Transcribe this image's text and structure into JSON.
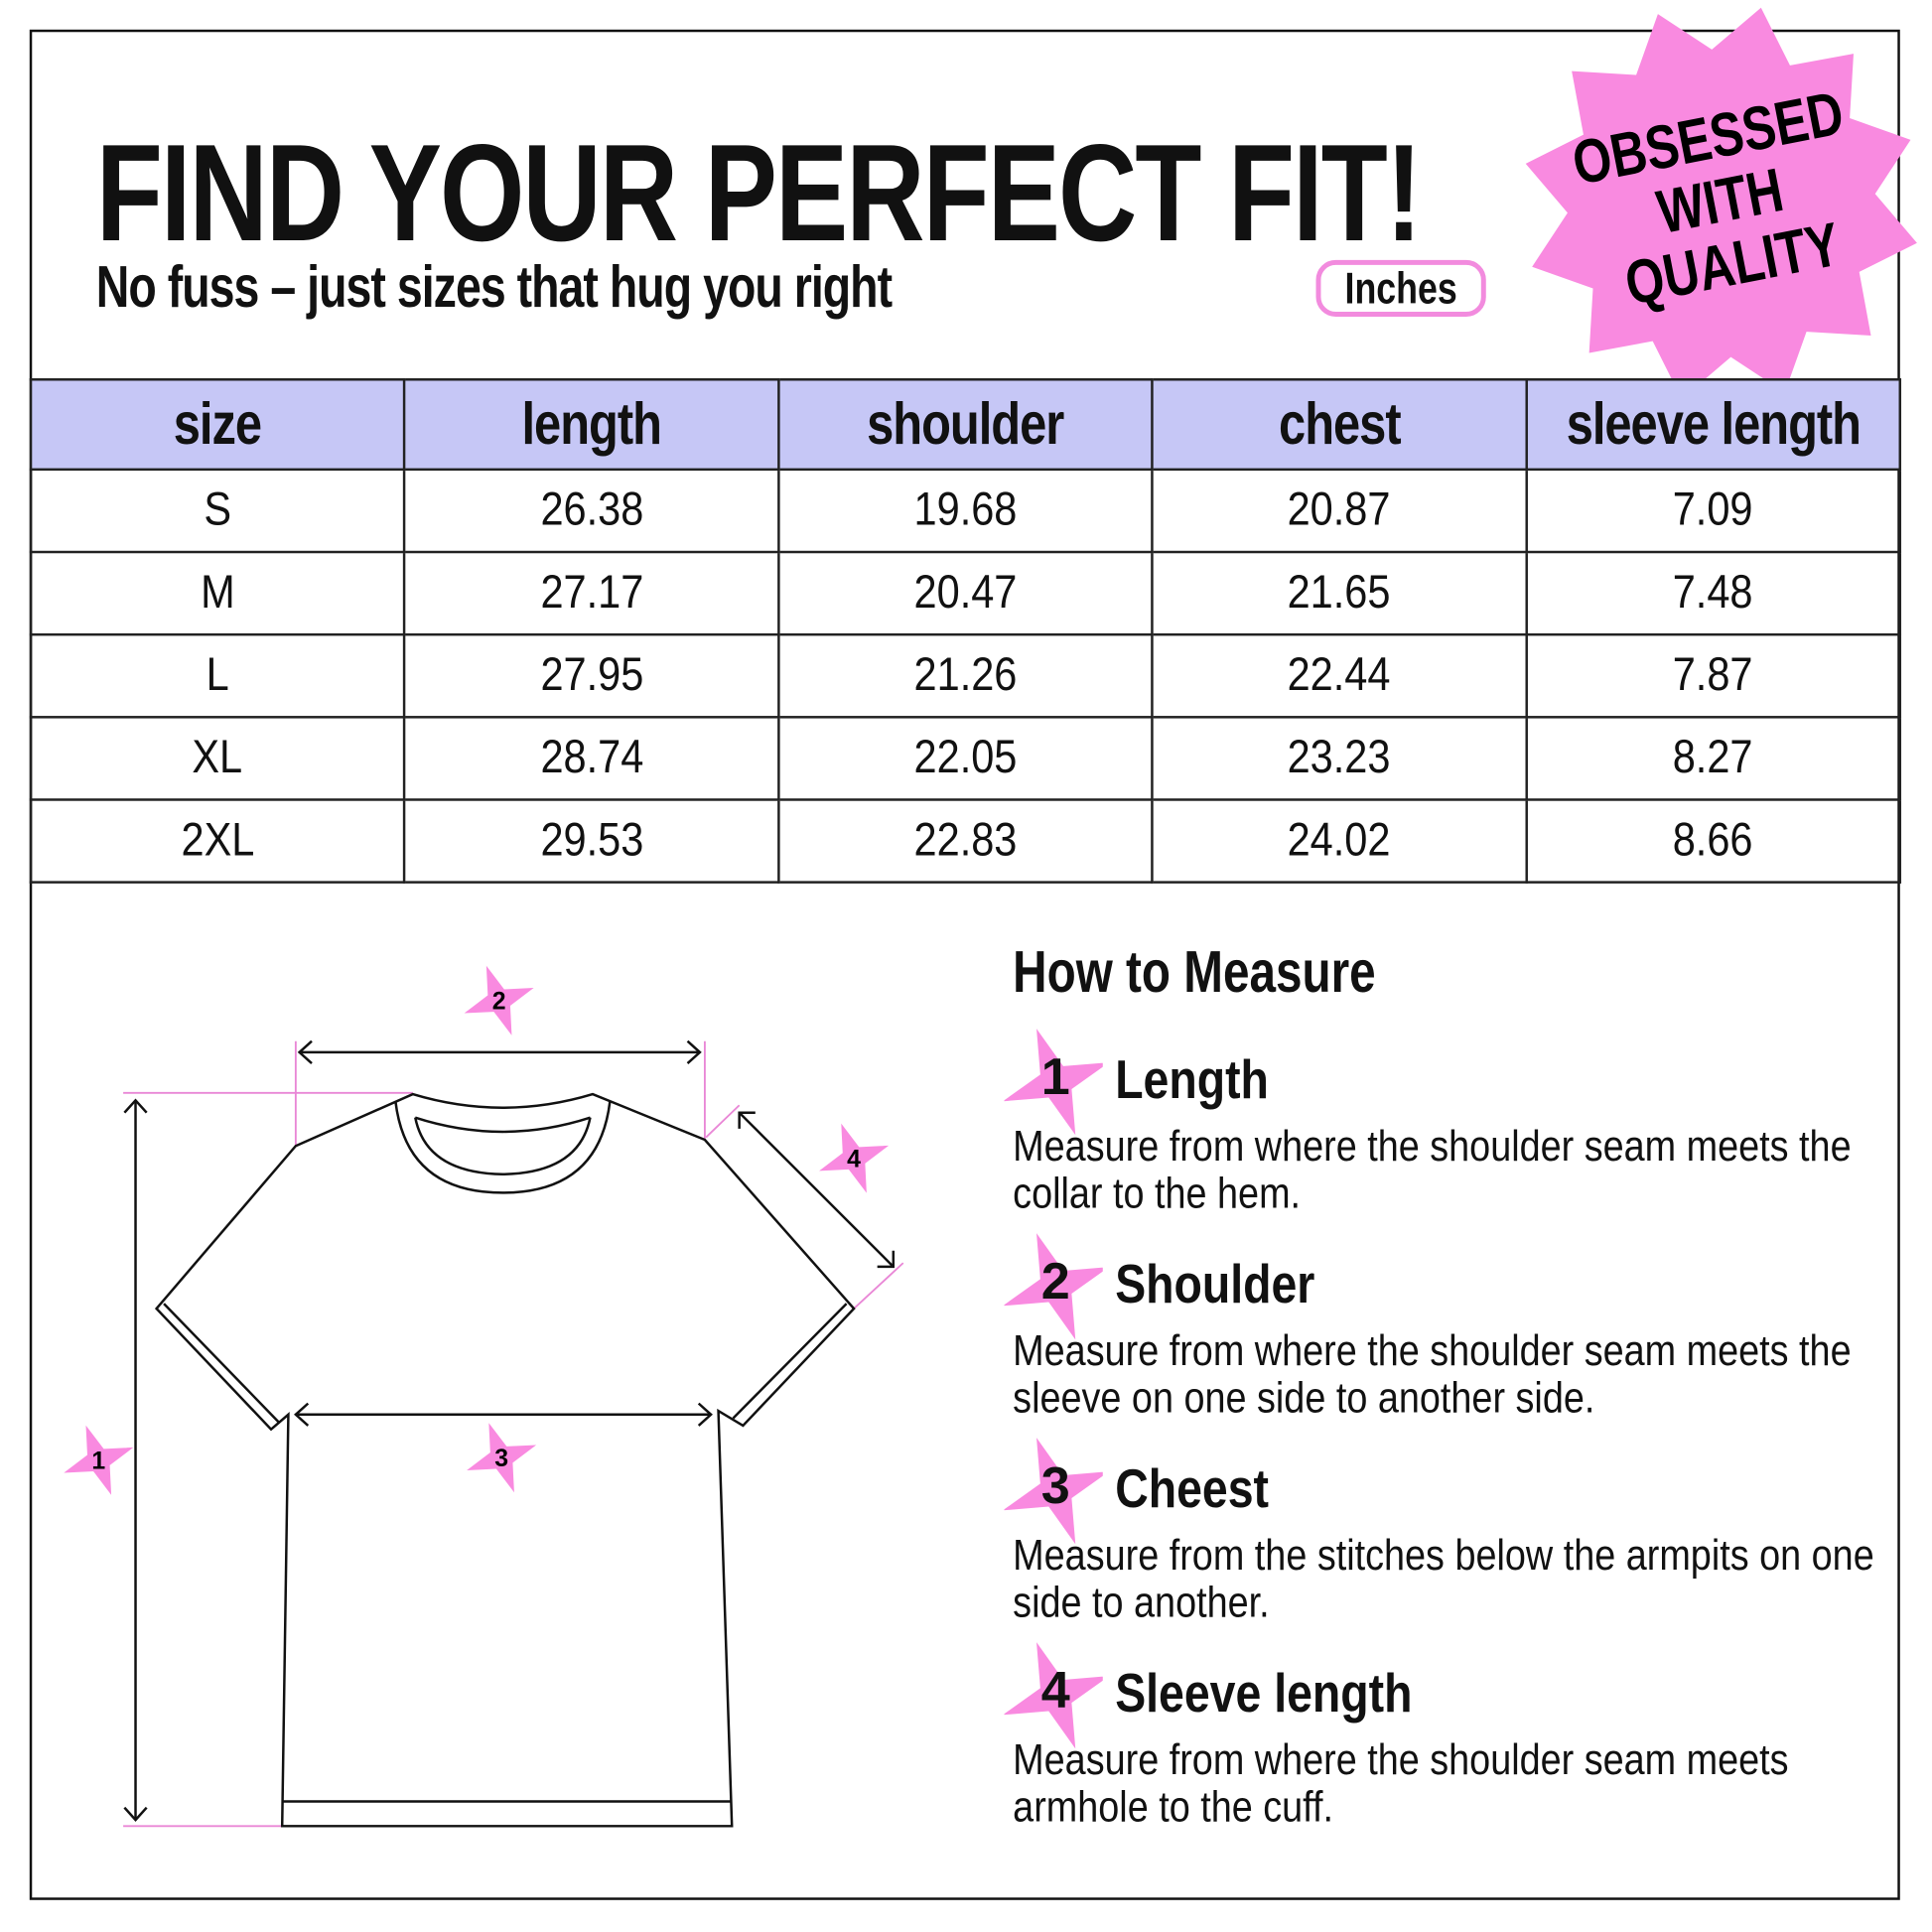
{
  "header": {
    "title": "FIND YOUR PERFECT FIT!",
    "subtitle": "No fuss – just sizes that hug you right",
    "unit_label": "Inches",
    "badge_lines": [
      "OBSESSED",
      "WITH",
      "QUALITY"
    ]
  },
  "colors": {
    "accent_pink": "#f98ae0",
    "header_lavender": "#c6c7f6"
  },
  "table": {
    "columns": [
      "size",
      "length",
      "shoulder",
      "chest",
      "sleeve length"
    ],
    "rows": [
      [
        "S",
        "26.38",
        "19.68",
        "20.87",
        "7.09"
      ],
      [
        "M",
        "27.17",
        "20.47",
        "21.65",
        "7.48"
      ],
      [
        "L",
        "27.95",
        "21.26",
        "22.44",
        "7.87"
      ],
      [
        "XL",
        "28.74",
        "22.05",
        "23.23",
        "8.27"
      ],
      [
        "2XL",
        "29.53",
        "22.83",
        "24.02",
        "8.66"
      ]
    ]
  },
  "diagram": {
    "markers": [
      "1",
      "2",
      "3",
      "4"
    ]
  },
  "how_to": {
    "title": "How to Measure",
    "steps": [
      {
        "num": "1",
        "title": "Length",
        "desc": "Measure from where the shoulder seam meets the collar to the hem."
      },
      {
        "num": "2",
        "title": "Shoulder",
        "desc": "Measure from where the shoulder seam meets the sleeve on one side to another side."
      },
      {
        "num": "3",
        "title": "Cheest",
        "desc": "Measure from the stitches below the armpits on one side to another."
      },
      {
        "num": "4",
        "title": "Sleeve length",
        "desc": "Measure from where the shoulder seam meets armhole to the cuff."
      }
    ]
  }
}
